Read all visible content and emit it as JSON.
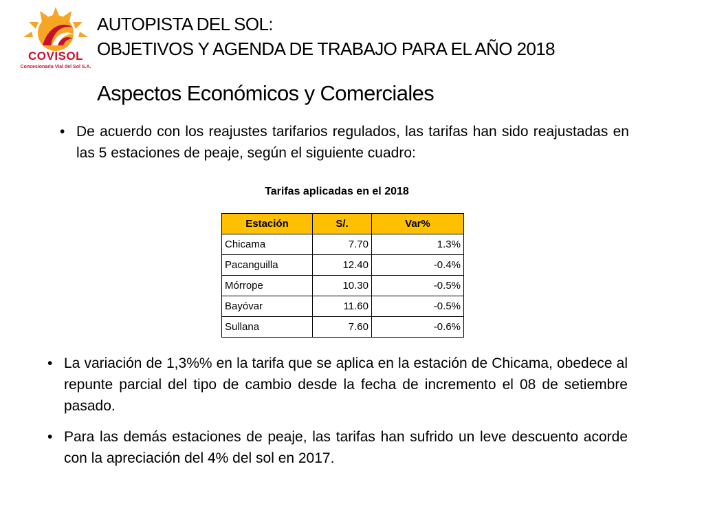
{
  "logo": {
    "name": "COVISOL",
    "subtitle": "Concesionaria Vial del Sol S.A.",
    "colors": {
      "sun": "#f6a623",
      "brand": "#c8102e"
    }
  },
  "header": {
    "title_line1": "AUTOPISTA DEL SOL:",
    "title_line2": "OBJETIVOS Y AGENDA DE TRABAJO PARA EL AÑO 2018",
    "subtitle": "Aspectos Económicos y Comerciales"
  },
  "bullets": [
    "De acuerdo con los reajustes tarifarios regulados, las tarifas han sido reajustadas en las 5 estaciones de peaje, según el siguiente cuadro:",
    "La variación de 1,3%% en la tarifa que se aplica en la estación de Chicama, obedece al repunte parcial del tipo de cambio desde la fecha de incremento el 08 de setiembre pasado.",
    "Para las demás estaciones de peaje, las tarifas han sufrido un leve descuento acorde con la apreciación del 4% del sol en 2017."
  ],
  "bullet_glyph": "•",
  "table": {
    "caption": "Tarifas aplicadas en el  2018",
    "header_color": "#ffc000",
    "columns": [
      "Estación",
      "S/.",
      "Var%"
    ],
    "rows": [
      [
        "Chicama",
        "7.70",
        "1.3%"
      ],
      [
        "Pacanguilla",
        "12.40",
        "-0.4%"
      ],
      [
        "Mórrope",
        "10.30",
        "-0.5%"
      ],
      [
        "Bayóvar",
        "11.60",
        "-0.5%"
      ],
      [
        "Sullana",
        "7.60",
        "-0.6%"
      ]
    ]
  }
}
